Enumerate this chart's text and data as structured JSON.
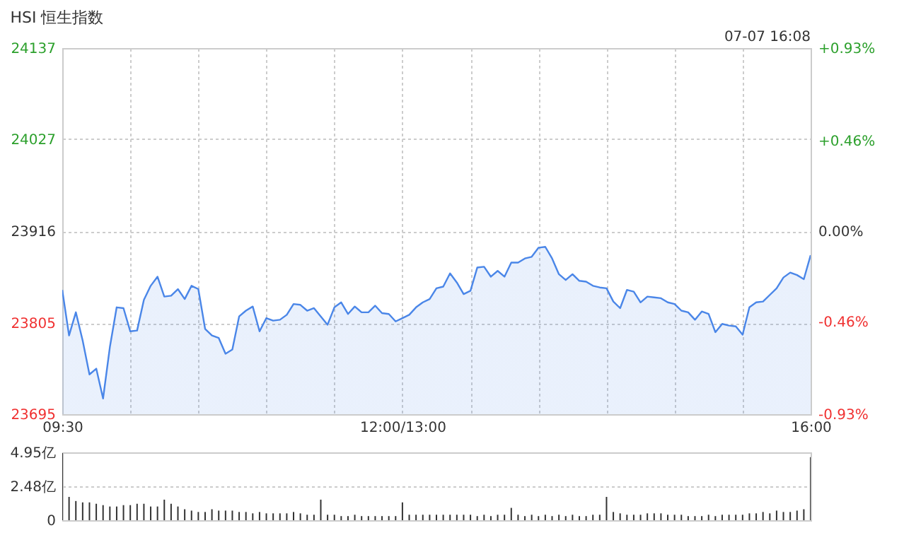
{
  "chart_data": [
    {
      "type": "area",
      "title": "HSI 恒生指数",
      "annotations": [
        "07-07 16:08"
      ],
      "categories": [
        "09:30",
        null,
        null,
        null,
        null,
        null,
        null,
        null,
        null,
        null,
        null,
        null,
        null,
        null,
        null,
        null,
        null,
        null,
        null,
        null,
        null,
        null,
        null,
        null,
        null,
        null,
        null,
        null,
        null,
        null,
        null,
        null,
        null,
        null,
        null,
        null,
        null,
        null,
        null,
        null,
        null,
        null,
        null,
        null,
        null,
        null,
        null,
        null,
        null,
        null,
        "12:00/13:00",
        null,
        null,
        null,
        null,
        null,
        null,
        null,
        null,
        null,
        null,
        null,
        null,
        null,
        null,
        null,
        null,
        null,
        null,
        null,
        null,
        null,
        null,
        null,
        null,
        null,
        null,
        null,
        null,
        null,
        null,
        null,
        null,
        null,
        null,
        null,
        null,
        null,
        null,
        null,
        null,
        null,
        null,
        null,
        null,
        null,
        null,
        null,
        null,
        null,
        null,
        null,
        null,
        null,
        null,
        null,
        null,
        null,
        null,
        null,
        "16:00"
      ],
      "series": [
        {
          "color": "#4a86e8",
          "values": [
            23845,
            23790,
            23818,
            23784,
            23743,
            23750,
            23714,
            23776,
            23824,
            23823,
            23795,
            23796,
            23833,
            23850,
            23861,
            23837,
            23838,
            23846,
            23834,
            23850,
            23846,
            23798,
            23790,
            23787,
            23768,
            23773,
            23813,
            23820,
            23825,
            23795,
            23811,
            23808,
            23809,
            23815,
            23828,
            23827,
            23820,
            23823,
            23813,
            23803,
            23824,
            23830,
            23816,
            23825,
            23818,
            23818,
            23826,
            23817,
            23816,
            23807,
            23811,
            23815,
            23824,
            23830,
            23834,
            23847,
            23849,
            23865,
            23854,
            23840,
            23844,
            23872,
            23873,
            23861,
            23868,
            23861,
            23878,
            23878,
            23883,
            23885,
            23896,
            23897,
            23883,
            23864,
            23857,
            23864,
            23856,
            23855,
            23850,
            23848,
            23847,
            23831,
            23823,
            23845,
            23843,
            23830,
            23837,
            23836,
            23835,
            23830,
            23828,
            23820,
            23818,
            23809,
            23819,
            23816,
            23794,
            23804,
            23802,
            23801,
            23791,
            23824,
            23830,
            23831,
            23839,
            23847,
            23860,
            23866,
            23863,
            23858,
            23887
          ]
        }
      ],
      "ylim": [
        23695,
        24137
      ],
      "yticks": [
        23695,
        23805,
        23916,
        24027,
        24137
      ],
      "y2lim": [
        -0.93,
        0.93
      ],
      "y2ticks": [
        {
          "value": -0.93,
          "label": "-0.93%"
        },
        {
          "value": -0.46,
          "label": "-0.46%"
        },
        {
          "value": 0,
          "label": "0.00%"
        },
        {
          "value": 0.46,
          "label": "+0.46%"
        },
        {
          "value": 0.93,
          "label": "+0.93%"
        }
      ],
      "grid": true
    },
    {
      "type": "bar",
      "color": "#333333",
      "categories": [
        null,
        null,
        null,
        null,
        null,
        null,
        null,
        null,
        null,
        null,
        null,
        null,
        null,
        null,
        null,
        null,
        null,
        null,
        null,
        null,
        null,
        null,
        null,
        null,
        null,
        null,
        null,
        null,
        null,
        null,
        null,
        null,
        null,
        null,
        null,
        null,
        null,
        null,
        null,
        null,
        null,
        null,
        null,
        null,
        null,
        null,
        null,
        null,
        null,
        null,
        null,
        null,
        null,
        null,
        null,
        null,
        null,
        null,
        null,
        null,
        null,
        null,
        null,
        null,
        null,
        null,
        null,
        null,
        null,
        null,
        null,
        null,
        null,
        null,
        null,
        null,
        null,
        null,
        null,
        null,
        null,
        null,
        null,
        null,
        null,
        null,
        null,
        null,
        null,
        null,
        null,
        null,
        null,
        null,
        null,
        null,
        null,
        null,
        null,
        null,
        null,
        null,
        null,
        null,
        null,
        null,
        null,
        null,
        null,
        null,
        null
      ],
      "values": [
        4.9,
        1.7,
        1.4,
        1.3,
        1.3,
        1.2,
        1.1,
        1.0,
        1.0,
        1.1,
        1.1,
        1.2,
        1.2,
        1.0,
        1.0,
        1.5,
        1.2,
        1.0,
        0.8,
        0.7,
        0.6,
        0.6,
        0.8,
        0.7,
        0.7,
        0.7,
        0.6,
        0.6,
        0.5,
        0.6,
        0.5,
        0.5,
        0.5,
        0.5,
        0.6,
        0.5,
        0.4,
        0.4,
        1.5,
        0.4,
        0.4,
        0.3,
        0.3,
        0.4,
        0.3,
        0.3,
        0.3,
        0.3,
        0.3,
        0.3,
        1.3,
        0.4,
        0.4,
        0.4,
        0.4,
        0.4,
        0.4,
        0.4,
        0.4,
        0.4,
        0.4,
        0.3,
        0.4,
        0.3,
        0.4,
        0.4,
        0.9,
        0.4,
        0.3,
        0.4,
        0.3,
        0.4,
        0.3,
        0.4,
        0.3,
        0.4,
        0.3,
        0.3,
        0.4,
        0.4,
        1.7,
        0.6,
        0.5,
        0.4,
        0.4,
        0.4,
        0.5,
        0.5,
        0.5,
        0.4,
        0.4,
        0.4,
        0.3,
        0.3,
        0.3,
        0.4,
        0.3,
        0.4,
        0.4,
        0.4,
        0.4,
        0.5,
        0.5,
        0.6,
        0.5,
        0.7,
        0.6,
        0.6,
        0.7,
        0.8,
        4.6
      ],
      "ylim": [
        0,
        4.95
      ],
      "yticks": [
        0,
        {
          "value": 2.48,
          "label": "2.48亿"
        },
        {
          "value": 4.95,
          "label": "4.95亿"
        }
      ],
      "grid": "y",
      "tick_labels": "y"
    }
  ]
}
